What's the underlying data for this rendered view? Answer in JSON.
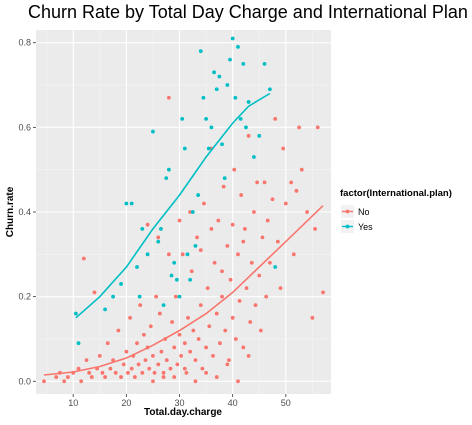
{
  "chart_data": {
    "type": "scatter",
    "title": "Churn Rate by Total Day Charge and International Plan",
    "xlabel": "Total.day.charge",
    "ylabel": "Churn.rate",
    "xlim": [
      3,
      58.5
    ],
    "ylim": [
      -0.03,
      0.83
    ],
    "x_ticks": [
      10,
      20,
      30,
      40,
      50
    ],
    "y_ticks": [
      0.0,
      0.2,
      0.4,
      0.6,
      0.8
    ],
    "x_tick_labels": [
      "10",
      "20",
      "30",
      "40",
      "50"
    ],
    "y_tick_labels": [
      "0.0",
      "0.2",
      "0.4",
      "0.6",
      "0.8"
    ],
    "grid": true,
    "legend": {
      "title": "factor(International.plan)",
      "placement": "right"
    },
    "series": [
      {
        "name": "No",
        "color": "#F8766D",
        "points": [
          [
            4.5,
            0.0
          ],
          [
            6.8,
            0.01
          ],
          [
            7.5,
            0.02
          ],
          [
            8.3,
            0.0
          ],
          [
            9.0,
            0.01
          ],
          [
            10.0,
            0.02
          ],
          [
            11.0,
            0.03
          ],
          [
            11.5,
            0.0
          ],
          [
            12.0,
            0.29
          ],
          [
            12.5,
            0.05
          ],
          [
            13.0,
            0.02
          ],
          [
            13.5,
            0.01
          ],
          [
            14.0,
            0.21
          ],
          [
            14.5,
            0.03
          ],
          [
            15.0,
            0.06
          ],
          [
            15.5,
            0.02
          ],
          [
            16.0,
            0.01
          ],
          [
            16.5,
            0.09
          ],
          [
            17.0,
            0.03
          ],
          [
            17.5,
            0.05
          ],
          [
            18.0,
            0.02
          ],
          [
            18.5,
            0.12
          ],
          [
            19.0,
            0.01
          ],
          [
            19.5,
            0.04
          ],
          [
            20.0,
            0.07
          ],
          [
            20.3,
            0.02
          ],
          [
            20.7,
            0.15
          ],
          [
            21.0,
            0.03
          ],
          [
            21.3,
            0.06
          ],
          [
            21.6,
            0.01
          ],
          [
            22.0,
            0.09
          ],
          [
            22.3,
            0.04
          ],
          [
            22.6,
            0.18
          ],
          [
            23.0,
            0.02
          ],
          [
            23.3,
            0.11
          ],
          [
            23.6,
            0.05
          ],
          [
            24.0,
            0.08
          ],
          [
            24.3,
            0.03
          ],
          [
            24.6,
            0.13
          ],
          [
            25.0,
            0.06
          ],
          [
            25.3,
            0.02
          ],
          [
            25.6,
            0.2
          ],
          [
            26.0,
            0.04
          ],
          [
            26.3,
            0.16
          ],
          [
            26.6,
            0.07
          ],
          [
            27.0,
            0.01
          ],
          [
            27.3,
            0.1
          ],
          [
            27.6,
            0.05
          ],
          [
            28.0,
            0.67
          ],
          [
            28.3,
            0.03
          ],
          [
            28.6,
            0.14
          ],
          [
            29.0,
            0.08
          ],
          [
            29.3,
            0.2
          ],
          [
            29.6,
            0.04
          ],
          [
            30.0,
            0.11
          ],
          [
            30.3,
            0.06
          ],
          [
            30.6,
            0.3
          ],
          [
            31.0,
            0.09
          ],
          [
            31.3,
            0.02
          ],
          [
            31.6,
            0.15
          ],
          [
            32.0,
            0.07
          ],
          [
            32.3,
            0.26
          ],
          [
            32.6,
            0.12
          ],
          [
            33.0,
            0.05
          ],
          [
            33.3,
            0.34
          ],
          [
            33.6,
            0.1
          ],
          [
            34.0,
            0.18
          ],
          [
            34.3,
            0.03
          ],
          [
            34.6,
            0.42
          ],
          [
            35.0,
            0.08
          ],
          [
            35.3,
            0.22
          ],
          [
            35.6,
            0.13
          ],
          [
            36.0,
            0.55
          ],
          [
            36.3,
            0.06
          ],
          [
            36.6,
            0.28
          ],
          [
            37.0,
            0.16
          ],
          [
            37.3,
            0.38
          ],
          [
            37.6,
            0.09
          ],
          [
            38.0,
            0.2
          ],
          [
            38.3,
            0.46
          ],
          [
            38.6,
            0.12
          ],
          [
            39.0,
            0.32
          ],
          [
            39.3,
            0.05
          ],
          [
            39.6,
            0.24
          ],
          [
            40.0,
            0.15
          ],
          [
            40.3,
            0.5
          ],
          [
            40.6,
            0.1
          ],
          [
            41.0,
            0.3
          ],
          [
            41.3,
            0.19
          ],
          [
            41.6,
            0.44
          ],
          [
            42.0,
            0.08
          ],
          [
            42.3,
            0.36
          ],
          [
            42.6,
            0.22
          ],
          [
            43.0,
            0.58
          ],
          [
            43.3,
            0.14
          ],
          [
            43.6,
            0.28
          ],
          [
            44.0,
            0.4
          ],
          [
            44.3,
            0.18
          ],
          [
            44.6,
            0.47
          ],
          [
            45.0,
            0.25
          ],
          [
            45.3,
            0.12
          ],
          [
            45.6,
            0.34
          ],
          [
            46.0,
            0.47
          ],
          [
            46.3,
            0.2
          ],
          [
            46.6,
            0.38
          ],
          [
            47.0,
            0.28
          ],
          [
            47.5,
            0.43
          ],
          [
            48.0,
            0.62
          ],
          [
            48.5,
            0.33
          ],
          [
            49.0,
            0.22
          ],
          [
            49.5,
            0.55
          ],
          [
            50.0,
            0.42
          ],
          [
            51.0,
            0.47
          ],
          [
            51.5,
            0.3
          ],
          [
            52.0,
            0.45
          ],
          [
            52.5,
            0.6
          ],
          [
            53.0,
            0.5
          ],
          [
            54.0,
            0.4
          ],
          [
            55.0,
            0.15
          ],
          [
            55.5,
            0.36
          ],
          [
            56.0,
            0.6
          ],
          [
            57.0,
            0.21
          ],
          [
            24.0,
            0.37
          ],
          [
            26.0,
            0.34
          ],
          [
            28.0,
            0.3
          ],
          [
            30.0,
            0.38
          ],
          [
            32.0,
            0.4
          ],
          [
            34.0,
            0.31
          ],
          [
            36.0,
            0.36
          ],
          [
            38.0,
            0.26
          ],
          [
            40.0,
            0.37
          ],
          [
            42.0,
            0.33
          ],
          [
            25.0,
            0.0
          ],
          [
            27.0,
            0.02
          ],
          [
            29.0,
            0.01
          ],
          [
            31.0,
            0.03
          ],
          [
            33.0,
            0.0
          ],
          [
            35.0,
            0.02
          ],
          [
            37.0,
            0.01
          ],
          [
            39.0,
            0.04
          ],
          [
            41.0,
            0.0
          ],
          [
            43.0,
            0.06
          ]
        ],
        "fit_curve": [
          [
            4.5,
            0.015
          ],
          [
            10,
            0.022
          ],
          [
            15,
            0.035
          ],
          [
            20,
            0.055
          ],
          [
            25,
            0.085
          ],
          [
            30,
            0.12
          ],
          [
            35,
            0.16
          ],
          [
            40,
            0.21
          ],
          [
            45,
            0.27
          ],
          [
            50,
            0.33
          ],
          [
            57,
            0.415
          ]
        ]
      },
      {
        "name": "Yes",
        "color": "#00BFC4",
        "points": [
          [
            10.5,
            0.16
          ],
          [
            11.0,
            0.09
          ],
          [
            16.0,
            0.17
          ],
          [
            17.5,
            0.2
          ],
          [
            19.0,
            0.23
          ],
          [
            20.0,
            0.42
          ],
          [
            21.0,
            0.42
          ],
          [
            22.0,
            0.27
          ],
          [
            22.5,
            0.2
          ],
          [
            23.0,
            0.36
          ],
          [
            24.0,
            0.3
          ],
          [
            25.0,
            0.59
          ],
          [
            26.0,
            0.33
          ],
          [
            26.5,
            0.36
          ],
          [
            27.0,
            0.18
          ],
          [
            27.5,
            0.48
          ],
          [
            28.0,
            0.5
          ],
          [
            28.5,
            0.25
          ],
          [
            29.0,
            0.28
          ],
          [
            29.5,
            0.24
          ],
          [
            30.0,
            0.2
          ],
          [
            30.5,
            0.62
          ],
          [
            31.0,
            0.55
          ],
          [
            31.5,
            0.3
          ],
          [
            32.0,
            0.24
          ],
          [
            32.5,
            0.4
          ],
          [
            33.0,
            0.32
          ],
          [
            33.5,
            0.44
          ],
          [
            34.0,
            0.78
          ],
          [
            34.5,
            0.67
          ],
          [
            35.0,
            0.62
          ],
          [
            35.5,
            0.55
          ],
          [
            36.0,
            0.6
          ],
          [
            36.5,
            0.73
          ],
          [
            37.0,
            0.69
          ],
          [
            37.5,
            0.72
          ],
          [
            38.0,
            0.56
          ],
          [
            38.5,
            0.48
          ],
          [
            39.0,
            0.7
          ],
          [
            39.5,
            0.76
          ],
          [
            40.0,
            0.81
          ],
          [
            40.5,
            0.67
          ],
          [
            41.0,
            0.79
          ],
          [
            41.5,
            0.62
          ],
          [
            42.0,
            0.75
          ],
          [
            42.5,
            0.6
          ],
          [
            43.0,
            0.66
          ],
          [
            44.0,
            0.53
          ],
          [
            45.0,
            0.58
          ],
          [
            46.0,
            0.75
          ],
          [
            47.0,
            0.69
          ],
          [
            48.0,
            0.27
          ]
        ],
        "fit_curve": [
          [
            10.5,
            0.15
          ],
          [
            15,
            0.2
          ],
          [
            20,
            0.27
          ],
          [
            25,
            0.36
          ],
          [
            30,
            0.44
          ],
          [
            35,
            0.53
          ],
          [
            40,
            0.61
          ],
          [
            43,
            0.65
          ],
          [
            47,
            0.68
          ]
        ]
      }
    ]
  }
}
